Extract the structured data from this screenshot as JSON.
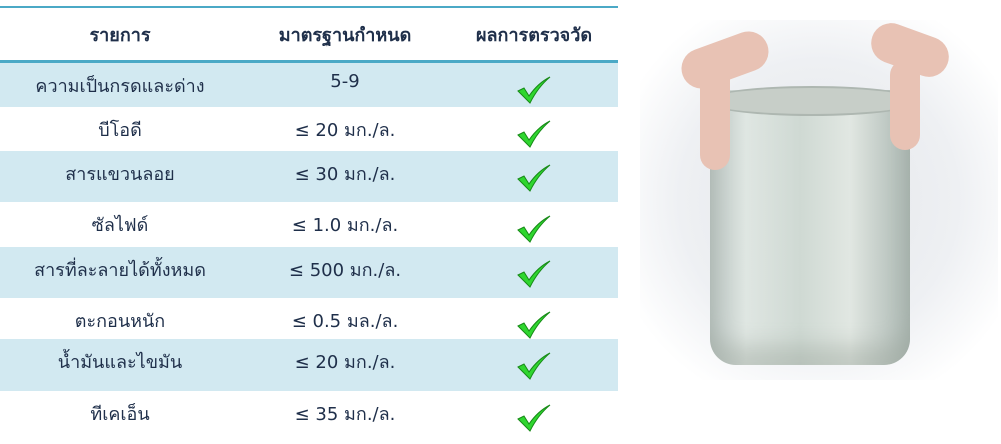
{
  "table": {
    "headers": [
      "รายการ",
      "มาตรฐานกำหนด",
      "ผลการตรวจวัด"
    ],
    "rows": [
      {
        "item": "ความเป็นกรดและด่าง",
        "standard": "5-9",
        "result": "check-icon"
      },
      {
        "item": "บีโอดี",
        "standard": "≤ 20 มก./ล.",
        "result": "check-icon"
      },
      {
        "item": "สารแขวนลอย",
        "standard": "≤ 30 มก./ล.",
        "result": "check-icon"
      },
      {
        "item": "ซัลไฟด์",
        "standard": "≤ 1.0 มก./ล.",
        "result": "check-icon"
      },
      {
        "item": "สารที่ละลายได้ทั้งหมด",
        "standard": "≤ 500 มก./ล.",
        "result": "check-icon"
      },
      {
        "item": "ตะกอนหนัก",
        "standard": "≤ 0.5 มล./ล.",
        "result": "check-icon"
      },
      {
        "item": "น้ำมันและไขมัน",
        "standard": "≤ 20 มก./ล.",
        "result": "check-icon"
      },
      {
        "item": "ทีเคเอ็น",
        "standard": "≤ 35 มก./ล.",
        "result": "check-icon"
      }
    ]
  },
  "colors": {
    "accent": "#4ba9c6",
    "row_alt": "#d2e9f1",
    "check": "#2fd62f",
    "text": "#1f2f4a"
  }
}
